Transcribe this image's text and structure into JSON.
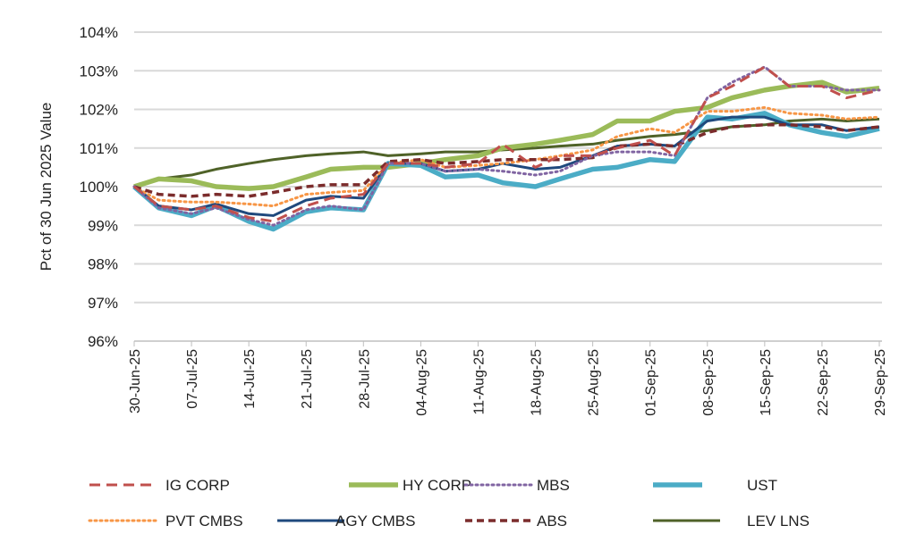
{
  "chart_data": {
    "type": "line",
    "title": "",
    "xlabel": "",
    "ylabel": "Pct of 30 Jun 2025 Value",
    "ylim": [
      96,
      104
    ],
    "yticks": [
      "96%",
      "97%",
      "98%",
      "99%",
      "100%",
      "101%",
      "102%",
      "103%",
      "104%"
    ],
    "xtick_labels": [
      "30-Jun-25",
      "07-Jul-25",
      "14-Jul-25",
      "21-Jul-25",
      "28-Jul-25",
      "04-Aug-25",
      "11-Aug-25",
      "18-Aug-25",
      "25-Aug-25",
      "01-Sep-25",
      "08-Sep-25",
      "15-Sep-25",
      "22-Sep-25",
      "29-Sep-25"
    ],
    "x_days_since_30_jun": [
      0,
      3,
      7,
      10,
      14,
      17,
      21,
      24,
      28,
      31,
      35,
      38,
      42,
      45,
      49,
      52,
      56,
      59,
      63,
      66,
      70,
      73,
      77,
      80,
      84,
      87,
      91
    ],
    "grid": "horizontal",
    "legend_position": "bottom",
    "series": [
      {
        "name": "IG CORP",
        "color": "#C0504D",
        "style": "dash",
        "values": [
          100,
          99.5,
          99.4,
          99.5,
          99.2,
          99.1,
          99.5,
          99.7,
          99.8,
          100.6,
          100.6,
          100.5,
          100.6,
          101.1,
          100.5,
          100.8,
          100.8,
          101.0,
          101.2,
          100.8,
          102.3,
          102.6,
          103.1,
          102.6,
          102.6,
          102.3,
          102.5
        ]
      },
      {
        "name": "HY CORP",
        "color": "#9BBB59",
        "style": "thick",
        "values": [
          100,
          100.2,
          100.15,
          100.0,
          99.95,
          100.0,
          100.25,
          100.45,
          100.5,
          100.5,
          100.6,
          100.7,
          100.8,
          101.0,
          101.1,
          101.2,
          101.35,
          101.7,
          101.7,
          101.95,
          102.05,
          102.3,
          102.5,
          102.6,
          102.7,
          102.45,
          102.55
        ]
      },
      {
        "name": "MBS",
        "color": "#8064A2",
        "style": "dot",
        "values": [
          100,
          99.45,
          99.3,
          99.45,
          99.15,
          99.0,
          99.4,
          99.5,
          99.4,
          100.6,
          100.6,
          100.4,
          100.45,
          100.4,
          100.3,
          100.4,
          100.8,
          100.9,
          100.9,
          100.8,
          102.3,
          102.7,
          103.1,
          102.6,
          102.6,
          102.5,
          102.5
        ]
      },
      {
        "name": "UST",
        "color": "#4BACC6",
        "style": "thick",
        "values": [
          100,
          99.45,
          99.25,
          99.5,
          99.1,
          98.9,
          99.35,
          99.45,
          99.4,
          100.6,
          100.55,
          100.25,
          100.3,
          100.1,
          100.0,
          100.2,
          100.45,
          100.5,
          100.7,
          100.65,
          101.8,
          101.75,
          101.9,
          101.6,
          101.4,
          101.3,
          101.5
        ]
      },
      {
        "name": "PVT CMBS",
        "color": "#F79646",
        "style": "dot",
        "values": [
          100,
          99.65,
          99.6,
          99.6,
          99.55,
          99.5,
          99.8,
          99.85,
          99.9,
          100.6,
          100.7,
          100.5,
          100.55,
          100.6,
          100.7,
          100.8,
          100.95,
          101.3,
          101.5,
          101.4,
          101.95,
          101.95,
          102.05,
          101.9,
          101.85,
          101.75,
          101.8
        ]
      },
      {
        "name": "AGY CMBS",
        "color": "#1F497D",
        "style": "solid",
        "values": [
          100,
          99.5,
          99.4,
          99.55,
          99.3,
          99.25,
          99.65,
          99.75,
          99.7,
          100.6,
          100.6,
          100.4,
          100.45,
          100.6,
          100.45,
          100.5,
          100.8,
          101.05,
          101.1,
          101.05,
          101.7,
          101.8,
          101.8,
          101.6,
          101.6,
          101.45,
          101.55
        ]
      },
      {
        "name": "ABS",
        "color": "#7B2C2C",
        "style": "dash2",
        "values": [
          100,
          99.8,
          99.75,
          99.8,
          99.75,
          99.85,
          100.0,
          100.05,
          100.05,
          100.65,
          100.7,
          100.6,
          100.65,
          100.7,
          100.7,
          100.7,
          100.75,
          101.05,
          101.1,
          101.05,
          101.4,
          101.55,
          101.6,
          101.6,
          101.55,
          101.45,
          101.55
        ]
      },
      {
        "name": "LEV LNS",
        "color": "#4F6228",
        "style": "solid",
        "values": [
          100,
          100.2,
          100.3,
          100.45,
          100.6,
          100.7,
          100.8,
          100.85,
          100.9,
          100.8,
          100.85,
          100.9,
          100.9,
          100.95,
          101.0,
          101.05,
          101.1,
          101.2,
          101.3,
          101.35,
          101.45,
          101.55,
          101.6,
          101.7,
          101.75,
          101.7,
          101.75
        ]
      }
    ]
  }
}
